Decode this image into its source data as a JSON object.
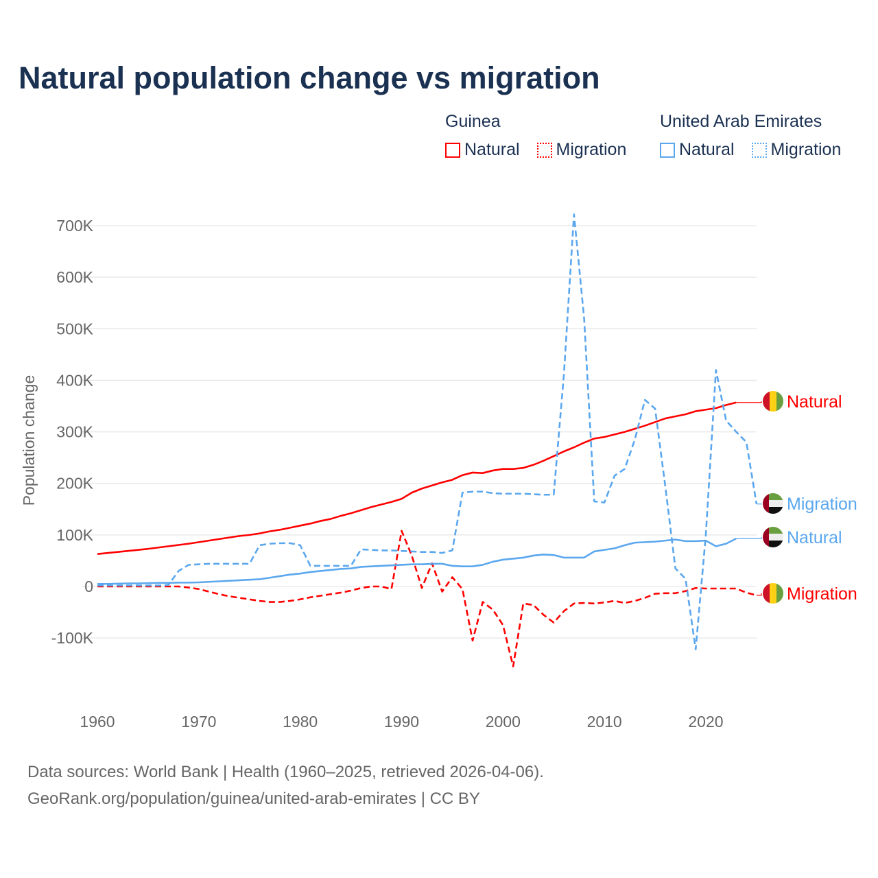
{
  "title": "Natural population change vs migration",
  "legend": {
    "groups": [
      {
        "name": "Guinea",
        "items": [
          {
            "label": "Natural",
            "style": "solid"
          },
          {
            "label": "Migration",
            "style": "dotted"
          }
        ],
        "color": "#ff0000"
      },
      {
        "name": "United Arab Emirates",
        "items": [
          {
            "label": "Natural",
            "style": "solid"
          },
          {
            "label": "Migration",
            "style": "dotted"
          }
        ],
        "color": "#5ba7ee"
      }
    ]
  },
  "footer": {
    "line1": "Data sources: World Bank | Health (1960–2025, retrieved 2026-04-06).",
    "line2": "GeoRank.org/population/guinea/united-arab-emirates | CC BY"
  },
  "chart_data": {
    "type": "line",
    "title": "Natural population change vs migration",
    "xlabel": "",
    "ylabel": "Population change",
    "xlim": [
      1960,
      2025
    ],
    "ylim": [
      -200000,
      720000
    ],
    "x_ticks": [
      1960,
      1970,
      1980,
      1990,
      2000,
      2010,
      2020
    ],
    "y_ticks": [
      {
        "v": -100000,
        "label": "-100K"
      },
      {
        "v": 0,
        "label": "0"
      },
      {
        "v": 100000,
        "label": "100K"
      },
      {
        "v": 200000,
        "label": "200K"
      },
      {
        "v": 300000,
        "label": "300K"
      },
      {
        "v": 400000,
        "label": "400K"
      },
      {
        "v": 500000,
        "label": "500K"
      },
      {
        "v": 600000,
        "label": "600K"
      },
      {
        "v": 700000,
        "label": "700K"
      }
    ],
    "grid": true,
    "x_start": 1960,
    "series": [
      {
        "name": "Guinea Natural",
        "end_label": "Natural",
        "color": "#ff0000",
        "dash": false,
        "flag": "guinea",
        "values": [
          63,
          65,
          67,
          69,
          71,
          73,
          75.5,
          78,
          80.5,
          83,
          86,
          89,
          92,
          95,
          98,
          100,
          103,
          107,
          110,
          114,
          118,
          122,
          127,
          131,
          137,
          142,
          148,
          154,
          159,
          164,
          170,
          182,
          190,
          196,
          202,
          207,
          216,
          221,
          220,
          225,
          228,
          228,
          230,
          236,
          244,
          253,
          262,
          270,
          279,
          287,
          290,
          295,
          300,
          306,
          312,
          319,
          326,
          330,
          334,
          340,
          343,
          346,
          352,
          357
        ]
      },
      {
        "name": "Guinea Migration",
        "end_label": "Migration",
        "color": "#ff0000",
        "dash": true,
        "flag": "guinea",
        "values": [
          0,
          0,
          0,
          0,
          0,
          0,
          0,
          0,
          0,
          -2,
          -5,
          -10,
          -15,
          -19,
          -22,
          -25,
          -28,
          -30,
          -30,
          -28,
          -25,
          -21,
          -18,
          -15,
          -12,
          -8,
          -3,
          0,
          0,
          -5,
          108,
          60,
          -3,
          45,
          -10,
          18,
          -5,
          -105,
          -30,
          -45,
          -75,
          -155,
          -33,
          -36,
          -55,
          -70,
          -48,
          -33,
          -32,
          -33,
          -31,
          -28,
          -32,
          -28,
          -22,
          -14,
          -13,
          -13,
          -9,
          -3,
          -4,
          -4,
          -4,
          -4,
          -12,
          -17
        ]
      },
      {
        "name": "United Arab Emirates Natural",
        "end_label": "Natural",
        "color": "#5ba7ee",
        "dash": false,
        "flag": "uae",
        "values": [
          5,
          5,
          5.5,
          6,
          6,
          6.5,
          7,
          7,
          7.5,
          7.5,
          8,
          9,
          10,
          11,
          12,
          13,
          14,
          17,
          20,
          23,
          25,
          28,
          30,
          32,
          34,
          35,
          38,
          39,
          40,
          41,
          42,
          43,
          43,
          44,
          44,
          40,
          39,
          39,
          42,
          48,
          52,
          54,
          56,
          60,
          62,
          61,
          56,
          56,
          56,
          68,
          71,
          74,
          80,
          85,
          86,
          87,
          89,
          91,
          88,
          88,
          89,
          78,
          83,
          93
        ]
      },
      {
        "name": "United Arab Emirates Migration",
        "end_label": "Migration",
        "color": "#5ba7ee",
        "dash": true,
        "flag": "uae",
        "values": [
          2,
          2,
          2,
          2,
          2,
          2,
          2,
          3,
          30,
          42,
          43,
          44,
          44,
          44,
          44,
          44,
          80,
          83,
          84,
          84,
          80,
          40,
          40,
          40,
          40,
          40,
          72,
          71,
          70,
          70,
          69,
          68,
          67,
          67,
          65,
          70,
          182,
          184,
          184,
          181,
          180,
          180,
          180,
          179,
          178,
          178,
          410,
          722,
          520,
          165,
          163,
          215,
          228,
          285,
          362,
          345,
          195,
          35,
          15,
          -122,
          100,
          420,
          322,
          300,
          280,
          160
        ]
      }
    ],
    "end_labels_order": [
      "Natural",
      "Migration",
      "Natural",
      "Migration"
    ]
  }
}
